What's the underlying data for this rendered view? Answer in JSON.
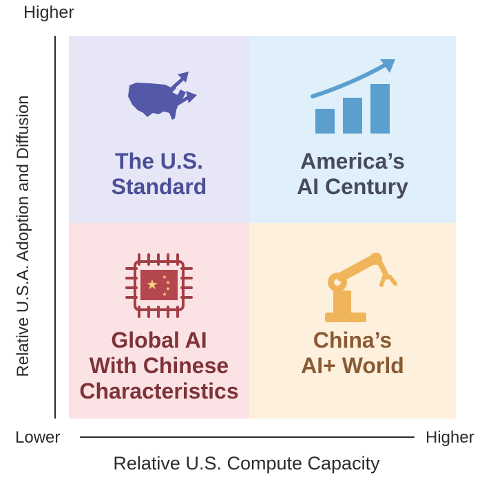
{
  "axes": {
    "y_top": "Higher",
    "y_label": "Relative U.S.A. Adoption and Diffusion",
    "x_lower": "Lower",
    "x_higher": "Higher",
    "x_label": "Relative U.S. Compute Capacity"
  },
  "quadrants": {
    "top_left": {
      "line1": "The U.S.",
      "line2": "Standard",
      "icon": "us-map-arrows-icon",
      "color": "#4a4f96",
      "bg": "#e6e6f6"
    },
    "top_right": {
      "line1": "America’s",
      "line2": "AI Century",
      "icon": "growth-bar-chart-icon",
      "color": "#474b5a",
      "bg": "#dff0fb"
    },
    "bottom_left": {
      "line1": "Global AI",
      "line2": "With Chinese",
      "line3": "Characteristics",
      "icon": "chinese-flag-chip-icon",
      "color": "#7e3338",
      "bg": "#fbe2e4"
    },
    "bottom_right": {
      "line1": "China’s",
      "line2": "AI+ World",
      "icon": "robot-arm-icon",
      "color": "#8a5a35",
      "bg": "#fdf0dc"
    }
  }
}
